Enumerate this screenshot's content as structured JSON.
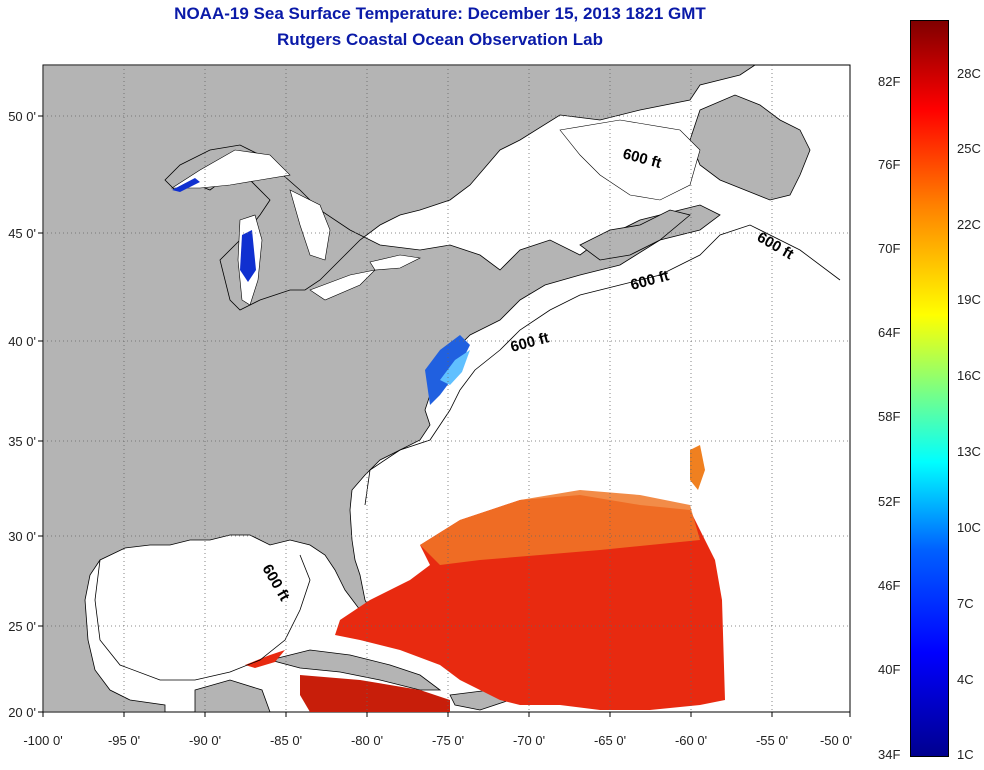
{
  "header": {
    "title": "NOAA-19 Sea Surface Temperature:  December 15, 2013 1821 GMT",
    "subtitle": "Rutgers Coastal Ocean Observation Lab"
  },
  "axes": {
    "x_ticks": [
      "-100 0'",
      "-95 0'",
      "-90 0'",
      "-85 0'",
      "-80 0'",
      "-75 0'",
      "-70 0'",
      "-65 0'",
      "-60 0'",
      "-55 0'",
      "-50 0'"
    ],
    "y_ticks": [
      "20 0'",
      "25 0'",
      "30 0'",
      "35 0'",
      "40 0'",
      "45 0'",
      "50 0'"
    ],
    "lon_range": [
      -100,
      -50
    ],
    "lat_range": [
      20,
      52
    ]
  },
  "isobath_labels": [
    "600 ft",
    "600 ft",
    "600 ft",
    "600 ft",
    "600 ft"
  ],
  "colorbar": {
    "fahrenheit": [
      "82F",
      "76F",
      "70F",
      "64F",
      "58F",
      "52F",
      "46F",
      "40F",
      "34F"
    ],
    "celsius": [
      "28C",
      "25C",
      "22C",
      "19C",
      "16C",
      "13C",
      "10C",
      "7C",
      "4C",
      "1C"
    ]
  },
  "colors": {
    "land": "#b4b4b4",
    "water": "#ffffff",
    "title": "#0a1aa8",
    "sst_warm": "#e82a10",
    "sst_orange": "#f07828",
    "sst_cold": "#1030d0"
  }
}
